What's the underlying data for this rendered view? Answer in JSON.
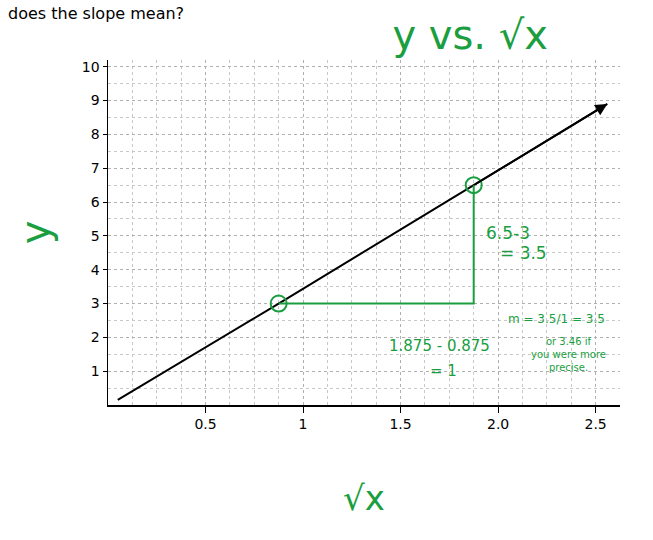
{
  "chart_data": {
    "type": "line",
    "title": "y vs. √x",
    "subtitle": "does the slope mean?",
    "x_label": "√x",
    "y_label": "y",
    "color": "#1a9e3f",
    "xlim": [
      0,
      2.625
    ],
    "ylim": [
      0,
      10.2
    ],
    "xticks": [
      0.5,
      1,
      1.5,
      {
        "value": 2,
        "label": "2.0"
      },
      2.5
    ],
    "yticks": [
      1,
      2,
      3,
      4,
      5,
      6,
      7,
      8,
      9,
      10
    ],
    "grid": true,
    "series": [
      {
        "type": "line",
        "color": "#000000",
        "line_style": "solid",
        "x": [
          0.05,
          0.875,
          1.875,
          2.56
        ],
        "values": [
          0.15,
          3,
          6.5,
          8.9
        ]
      },
      {
        "type": "line",
        "color": "#1a9e3f",
        "line_style": "solid",
        "x": [
          0.875,
          1.875,
          1.875
        ],
        "values": [
          3,
          3,
          6.5
        ]
      },
      {
        "type": "scatter",
        "color": "#1a9e3f",
        "marker": "circle-open",
        "x": [
          0.875,
          1.875
        ],
        "values": [
          3,
          6.5
        ]
      }
    ],
    "annotations": [
      "6.5-3",
      "= 3.5",
      "1.875 - 0.875",
      "= 1",
      "m = 3.5/1 = 3.5",
      "or 3.46 if you were more precise."
    ]
  }
}
